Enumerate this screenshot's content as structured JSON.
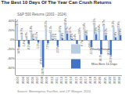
{
  "chart_data": {
    "type": "bar",
    "title": "The Best 10 Days Of The Year Can Crush Returns",
    "subtitle": "S&P 500 Returns (2003 - 2024)",
    "source": "Source: Morningstar, FactSet, and J.P. Morgan. 2024.",
    "categories": [
      "2003",
      "2004",
      "2005",
      "2006",
      "2007",
      "2008",
      "2009",
      "2010",
      "2011",
      "2012",
      "2013",
      "2014",
      "2015",
      "2016",
      "2017",
      "2018",
      "2019",
      "2020",
      "2021",
      "2022",
      "2023",
      "2024"
    ],
    "series": [
      {
        "name": "Yearly Return",
        "color": "#b8cce4",
        "values": [
          28.7,
          10.9,
          4.9,
          15.8,
          5.5,
          -37.0,
          26.5,
          15.1,
          2.1,
          16.0,
          32.4,
          13.7,
          1.4,
          12.0,
          21.8,
          -4.4,
          31.5,
          18.4,
          28.7,
          -18.1,
          26.3,
          25.0
        ],
        "value_labels": [
          "28.7%",
          "10.9%",
          "4.9%",
          "15.8%",
          "5.5%",
          "-37.0%",
          "26.5%",
          "15.1%",
          "2.1%",
          "16.0%",
          "32.4%",
          "13.7%",
          "1.4%",
          "12.0%",
          "21.8%",
          "-4.4%",
          "31.5%",
          "18.4%",
          "28.7%",
          "-18.1%",
          "26.3%",
          "25.0%"
        ]
      },
      {
        "name": "Miss Best 10 Days",
        "color": "#4472c4",
        "values": [
          -14.9,
          -1.3,
          -8.1,
          2.0,
          -5.5,
          -58.2,
          -7.1,
          1.6,
          -12.6,
          3.4,
          13.7,
          1.8,
          -8.5,
          -0.7,
          9.4,
          -15.2,
          12.3,
          -30.1,
          10.2,
          -32.6,
          5.4,
          10.0
        ],
        "value_labels": [
          "-14.9%",
          "-1.3%",
          "-8.1%",
          "2.0%",
          "-5.5%",
          "-58.2%",
          "-7.1%",
          "1.6%",
          "-12.6%",
          "3.4%",
          "13.7%",
          "1.8%",
          "-8.5%",
          "-0.7%",
          "9.4%",
          "-15.2%",
          "12.3%",
          "-30.1%",
          "10.2%",
          "-32.6%",
          "5.4%",
          "10.0%"
        ]
      }
    ],
    "ylim": [
      -75,
      45
    ],
    "yticks": [
      {
        "value": -60,
        "label": "-60%"
      },
      {
        "value": -40,
        "label": "-40%"
      },
      {
        "value": -20,
        "label": "-20%"
      },
      {
        "value": 0,
        "label": "0%"
      },
      {
        "value": 20,
        "label": "20%"
      },
      {
        "value": 40,
        "label": "40%"
      }
    ],
    "grid": true,
    "legend": "lower right",
    "data_labels": true
  }
}
